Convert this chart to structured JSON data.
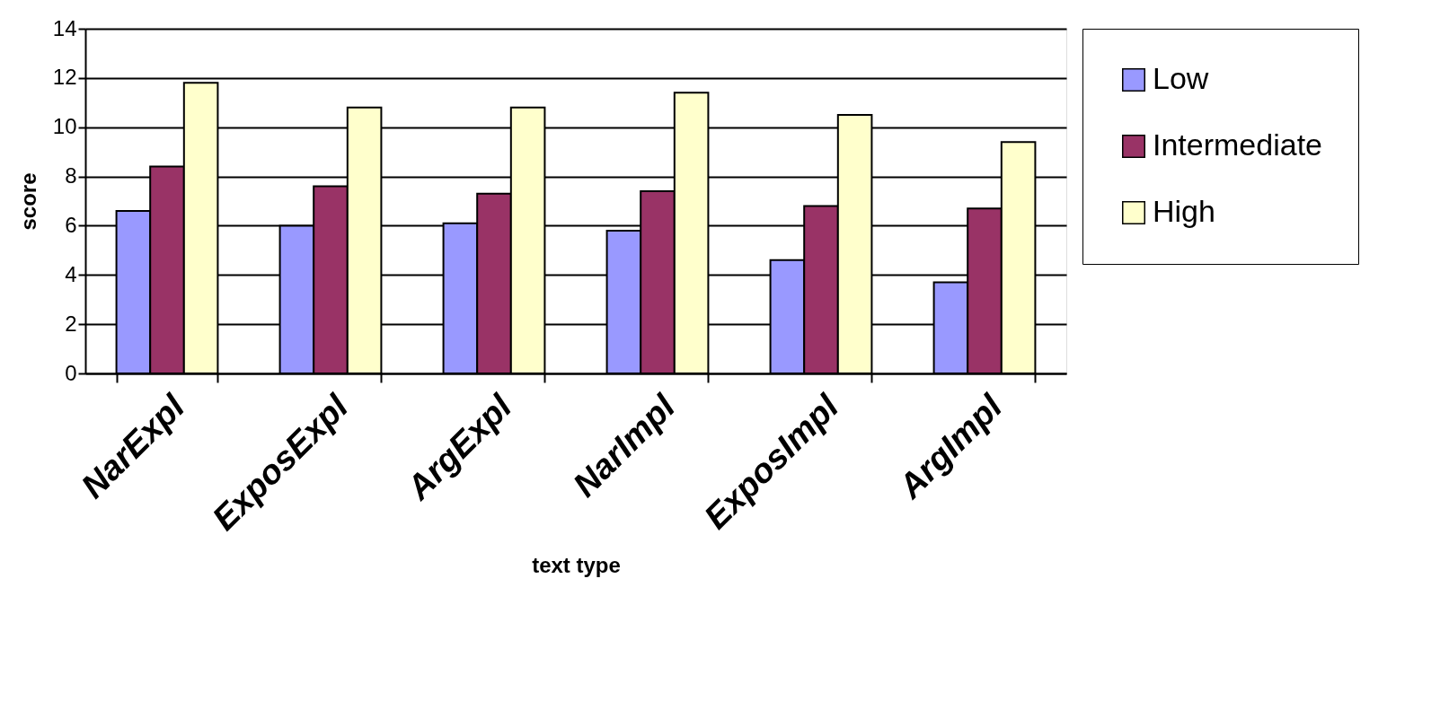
{
  "chart_data": {
    "type": "bar",
    "xlabel": "text type",
    "ylabel": "score",
    "categories": [
      "NarExpl",
      "ExposExpl",
      "ArgExpl",
      "NarImpl",
      "ExposImpl",
      "ArgImpl"
    ],
    "series": [
      {
        "name": "Low",
        "color": "#9999ff",
        "values": [
          6.6,
          6.0,
          6.1,
          5.8,
          4.6,
          3.7
        ]
      },
      {
        "name": "Intermediate",
        "color": "#993366",
        "values": [
          8.4,
          7.6,
          7.3,
          7.4,
          6.8,
          6.7
        ]
      },
      {
        "name": "High",
        "color": "#ffffcc",
        "values": [
          11.8,
          10.8,
          10.8,
          11.4,
          10.5,
          9.4
        ]
      }
    ],
    "ylim": [
      0,
      14
    ],
    "yticks": [
      0,
      2,
      4,
      6,
      8,
      10,
      12,
      14
    ],
    "grid": "y",
    "legend": "right"
  }
}
